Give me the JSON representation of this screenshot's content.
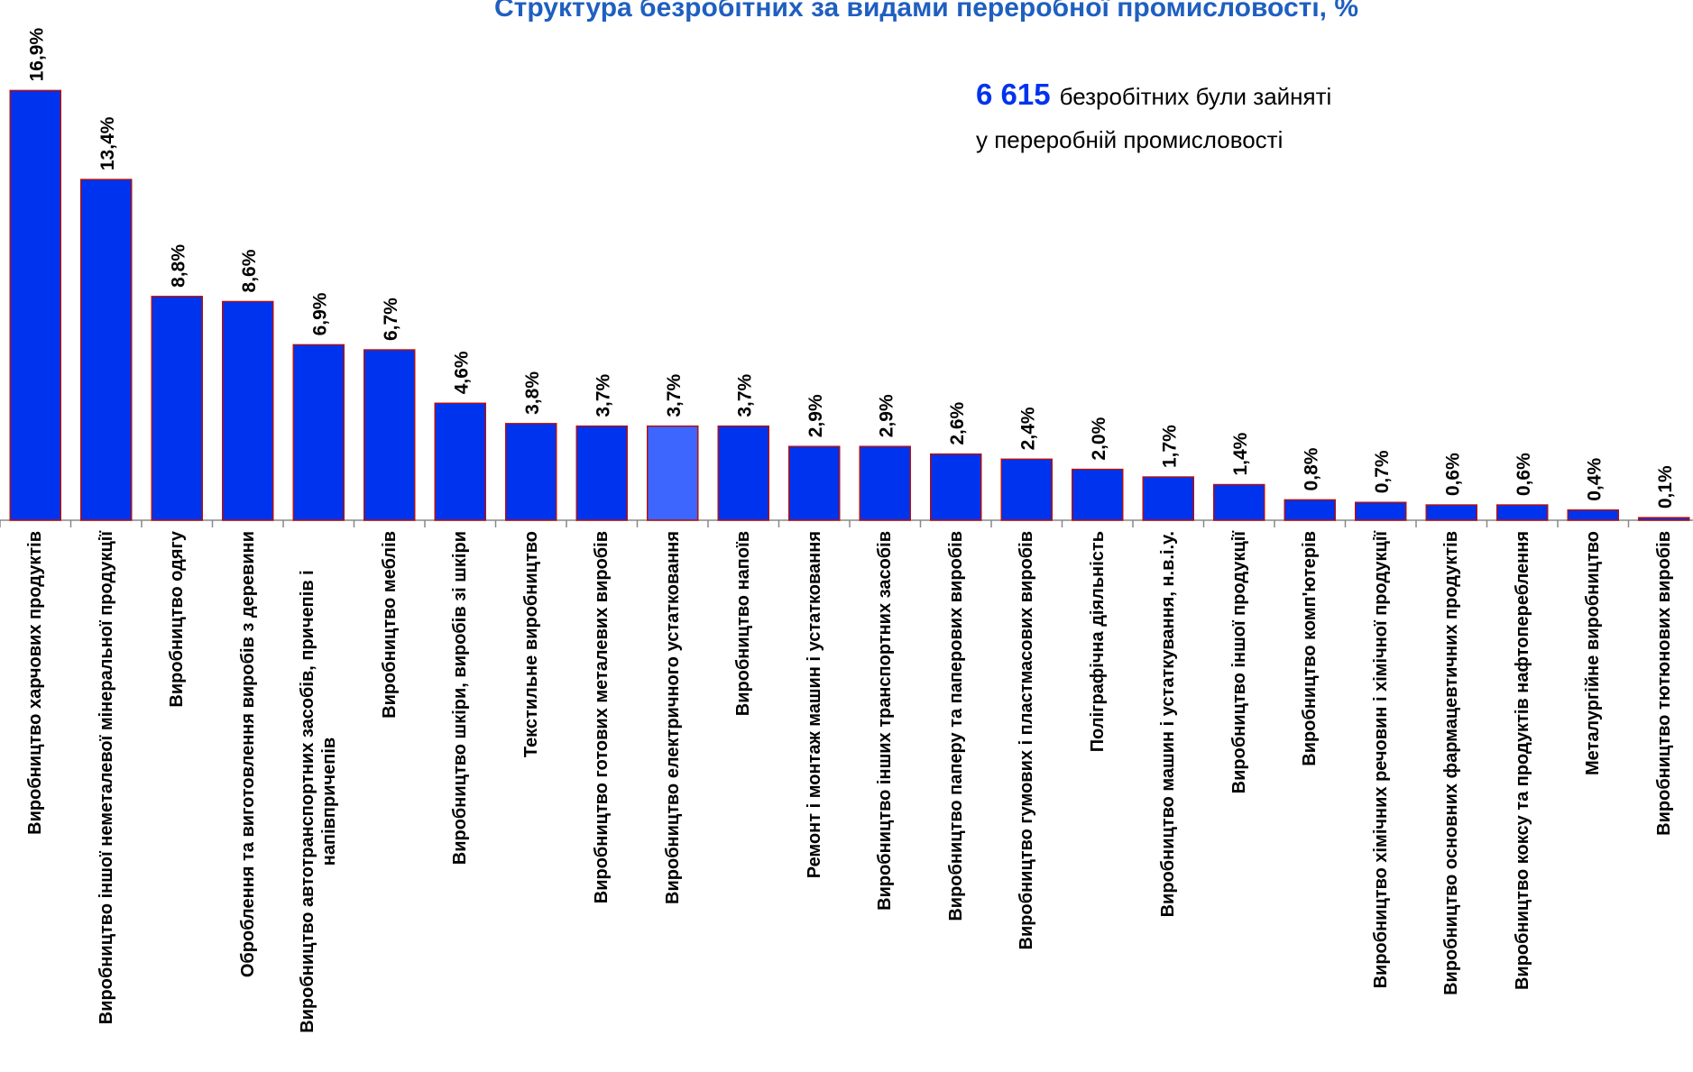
{
  "chart_data": {
    "type": "bar",
    "title": "Структура безробітних за видами переробної промисловості, %",
    "annotation_number": "6 615",
    "annotation_text": [
      "безробітних були зайняті",
      "у переробній промисловості"
    ],
    "categories": [
      "Виробництво харчових продуктів",
      "Виробництво іншої неметалевої мінеральної продукції",
      "Виробництво одягу",
      "Оброблення та виготовлення виробів з деревини",
      "Виробництво автотранспортних засобів, причепів і напівпричепів",
      "Виробництво меблів",
      "Виробництво шкіри, виробів зі шкіри",
      "Текстильне виробництво",
      "Виробництво готових металевих виробів",
      "Виробництво електричного устатковання",
      "Виробництво напоїв",
      "Ремонт і монтаж машин і устатковання",
      "Виробництво інших транспортних засобів",
      "Виробництво паперу та паперових виробів",
      "Виробництво гумових і пластмасових виробів",
      "Поліграфічна діяльність",
      "Виробництво машин і устаткування, н.в.і.у.",
      "Виробництво іншої продукції",
      "Виробництво комп'ютерів",
      "Виробництво хімічних речовин і хімічної продукції",
      "Виробництво основних фармацевтичних продуктів",
      "Виробництво коксу та продуктів нафтопереблення",
      "Металургійне виробництво",
      "Виробництво тютюнових виробів"
    ],
    "values": [
      16.9,
      13.4,
      8.8,
      8.6,
      6.9,
      6.7,
      4.6,
      3.8,
      3.7,
      3.7,
      3.7,
      2.9,
      2.9,
      2.6,
      2.4,
      2.0,
      1.7,
      1.4,
      0.8,
      0.7,
      0.6,
      0.6,
      0.4,
      0.1
    ],
    "value_labels": [
      "16,9%",
      "13,4%",
      "8,8%",
      "8,6%",
      "6,9%",
      "6,7%",
      "4,6%",
      "3,8%",
      "3,7%",
      "3,7%",
      "3,7%",
      "2,9%",
      "2,9%",
      "2,6%",
      "2,4%",
      "2,0%",
      "1,7%",
      "1,4%",
      "0,8%",
      "0,7%",
      "0,6%",
      "0,6%",
      "0,4%",
      "0,1%"
    ],
    "colors": [
      "#0033ee",
      "#0033ee",
      "#0033ee",
      "#0033ee",
      "#0033ee",
      "#0033ee",
      "#0033ee",
      "#0033ee",
      "#0033ee",
      "#3d66ff",
      "#0033ee",
      "#0033ee",
      "#0033ee",
      "#0033ee",
      "#0033ee",
      "#0033ee",
      "#0033ee",
      "#0033ee",
      "#0033ee",
      "#0033ee",
      "#0033ee",
      "#0033ee",
      "#0033ee",
      "#0033ee"
    ]
  }
}
